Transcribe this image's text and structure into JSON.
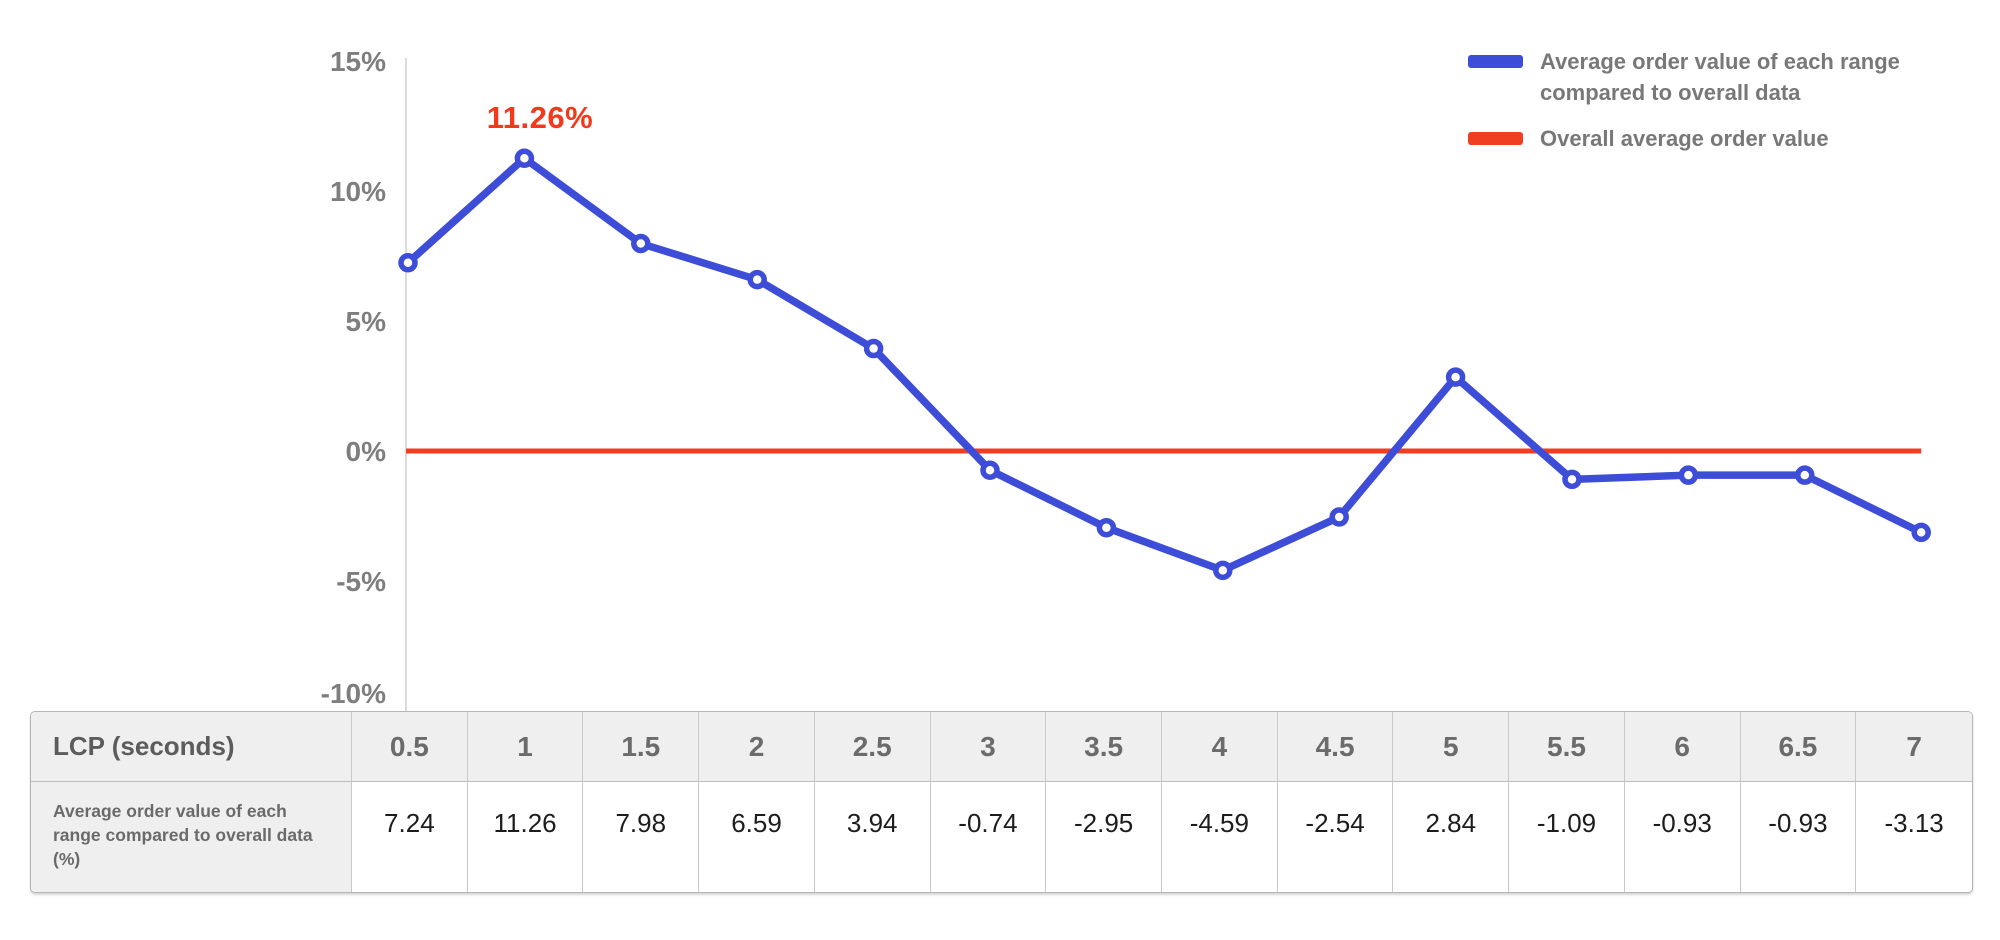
{
  "legend": {
    "series_label": "Average order value of each range compared to overall data",
    "baseline_label": "Overall average order value"
  },
  "chart_data": {
    "type": "line",
    "x_axis_label": "LCP (seconds)",
    "categories": [
      "0.5",
      "1",
      "1.5",
      "2",
      "2.5",
      "3",
      "3.5",
      "4",
      "4.5",
      "5",
      "5.5",
      "6",
      "6.5",
      "7"
    ],
    "series": [
      {
        "name": "Average order value of each range compared to overall data",
        "color": "#3d4dd8",
        "values": [
          7.24,
          11.26,
          7.98,
          6.59,
          3.94,
          -0.74,
          -2.95,
          -4.59,
          -2.54,
          2.84,
          -1.09,
          -0.93,
          -0.93,
          -3.13
        ]
      }
    ],
    "baseline": {
      "name": "Overall average order value",
      "value": 0,
      "color": "#ef3e22"
    },
    "annotation": {
      "label": "11.26%",
      "category": "1",
      "value": 11.26,
      "color": "#f2391c"
    },
    "y_ticks": [
      {
        "label": "15%",
        "value": 15
      },
      {
        "label": "10%",
        "value": 10
      },
      {
        "label": "5%",
        "value": 5
      },
      {
        "label": "0%",
        "value": 0
      },
      {
        "label": "-5%",
        "value": -5
      },
      {
        "label": "-10%",
        "value": -10
      }
    ],
    "ylim": [
      -10,
      15
    ],
    "grid": false,
    "legend_position": "top-right"
  },
  "table": {
    "header_label": "LCP (seconds)",
    "row_label": "Average order value of each range compared to overall data (%)",
    "columns": [
      "0.5",
      "1",
      "1.5",
      "2",
      "2.5",
      "3",
      "3.5",
      "4",
      "4.5",
      "5",
      "5.5",
      "6",
      "6.5",
      "7"
    ],
    "values": [
      "7.24",
      "11.26",
      "7.98",
      "6.59",
      "3.94",
      "-0.74",
      "-2.95",
      "-4.59",
      "-2.54",
      "2.84",
      "-1.09",
      "-0.93",
      "-0.93",
      "-3.13"
    ]
  },
  "colors": {
    "series_blue": "#3d4dd8",
    "baseline_red": "#ef3e22",
    "axis_text_gray": "#7e7e7e",
    "table_header_bg": "#f0efef"
  }
}
